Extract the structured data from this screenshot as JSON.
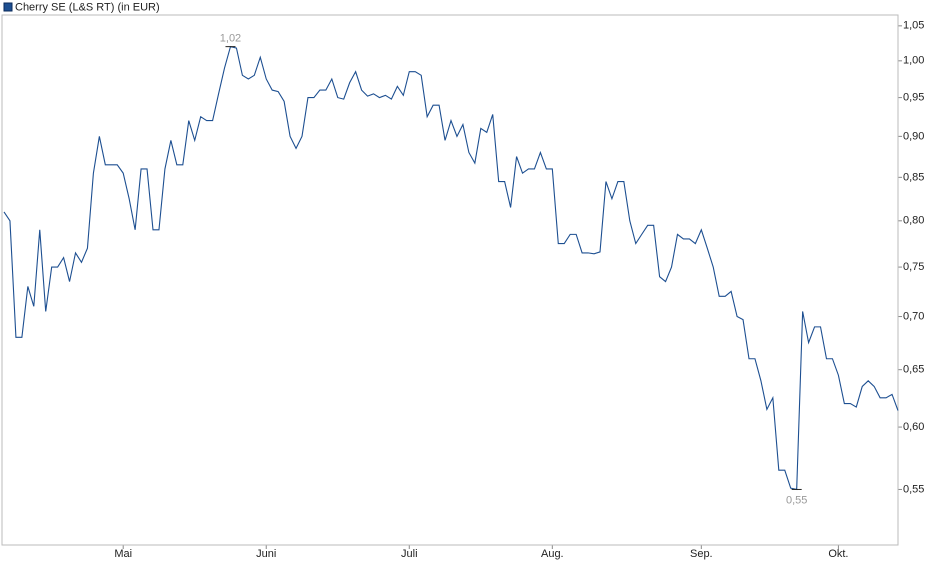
{
  "chart_data": {
    "type": "line",
    "log_scale": true,
    "grid": true,
    "legend_position": "top-left",
    "categories": [
      null,
      null,
      null,
      null,
      null,
      null,
      null,
      null,
      null,
      null,
      null,
      null,
      null,
      null,
      null,
      null,
      null,
      null,
      null,
      null,
      "Mai",
      null,
      null,
      null,
      null,
      null,
      null,
      null,
      null,
      null,
      null,
      null,
      null,
      null,
      null,
      null,
      null,
      null,
      null,
      null,
      null,
      null,
      null,
      null,
      "Juni",
      null,
      null,
      null,
      null,
      null,
      null,
      null,
      null,
      null,
      null,
      null,
      null,
      null,
      null,
      null,
      null,
      null,
      null,
      null,
      null,
      null,
      null,
      null,
      "Juli",
      null,
      null,
      null,
      null,
      null,
      null,
      null,
      null,
      null,
      null,
      null,
      null,
      null,
      null,
      null,
      null,
      null,
      null,
      null,
      null,
      null,
      null,
      null,
      "Aug.",
      null,
      null,
      null,
      null,
      null,
      null,
      null,
      null,
      null,
      null,
      null,
      null,
      null,
      null,
      null,
      null,
      null,
      null,
      null,
      null,
      null,
      null,
      null,
      null,
      "Sep.",
      null,
      null,
      null,
      null,
      null,
      null,
      null,
      null,
      null,
      null,
      null,
      null,
      null,
      null,
      null,
      null,
      null,
      null,
      null,
      null,
      null,
      null,
      "Okt.",
      null,
      null,
      null,
      null,
      null,
      null,
      null,
      null,
      null,
      null
    ],
    "series": [
      {
        "name": "Cherry SE (L&S RT) (in EUR)",
        "color": "#1d4f91",
        "values": [
          0.81,
          0.8,
          0.68,
          0.68,
          0.73,
          0.71,
          0.79,
          0.705,
          0.75,
          0.75,
          0.76,
          0.735,
          0.765,
          0.755,
          0.77,
          0.855,
          0.9,
          0.865,
          0.865,
          0.865,
          0.855,
          0.825,
          0.79,
          0.86,
          0.86,
          0.79,
          0.79,
          0.86,
          0.895,
          0.865,
          0.865,
          0.92,
          0.895,
          0.925,
          0.92,
          0.92,
          0.955,
          0.99,
          1.02,
          1.018,
          0.98,
          0.975,
          0.98,
          1.005,
          0.975,
          0.96,
          0.958,
          0.945,
          0.9,
          0.885,
          0.9,
          0.95,
          0.95,
          0.96,
          0.96,
          0.975,
          0.95,
          0.948,
          0.97,
          0.985,
          0.96,
          0.952,
          0.955,
          0.95,
          0.953,
          0.948,
          0.965,
          0.953,
          0.985,
          0.985,
          0.98,
          0.925,
          0.94,
          0.94,
          0.895,
          0.92,
          0.9,
          0.915,
          0.88,
          0.867,
          0.91,
          0.905,
          0.928,
          0.845,
          0.845,
          0.815,
          0.875,
          0.855,
          0.86,
          0.86,
          0.88,
          0.86,
          0.86,
          0.775,
          0.775,
          0.785,
          0.785,
          0.765,
          0.765,
          0.764,
          0.766,
          0.845,
          0.825,
          0.845,
          0.845,
          0.8,
          0.775,
          0.785,
          0.795,
          0.795,
          0.74,
          0.735,
          0.75,
          0.785,
          0.78,
          0.78,
          0.775,
          0.79,
          0.77,
          0.75,
          0.72,
          0.72,
          0.725,
          0.7,
          0.697,
          0.66,
          0.66,
          0.64,
          0.615,
          0.625,
          0.565,
          0.565,
          0.551,
          0.55,
          0.705,
          0.675,
          0.69,
          0.69,
          0.66,
          0.66,
          0.645,
          0.62,
          0.62,
          0.617,
          0.635,
          0.64,
          0.635,
          0.625,
          0.625,
          0.628,
          0.614
        ],
        "value_labels": [
          null,
          null,
          null,
          null,
          null,
          null,
          null,
          null,
          null,
          null,
          null,
          null,
          null,
          null,
          null,
          null,
          null,
          null,
          null,
          null,
          null,
          null,
          null,
          null,
          null,
          null,
          null,
          null,
          null,
          null,
          null,
          null,
          null,
          null,
          null,
          null,
          null,
          null,
          "1,02",
          null,
          null,
          null,
          null,
          null,
          null,
          null,
          null,
          null,
          null,
          null,
          null,
          null,
          null,
          null,
          null,
          null,
          null,
          null,
          null,
          null,
          null,
          null,
          null,
          null,
          null,
          null,
          null,
          null,
          null,
          null,
          null,
          null,
          null,
          null,
          null,
          null,
          null,
          null,
          null,
          null,
          null,
          null,
          null,
          null,
          null,
          null,
          null,
          null,
          null,
          null,
          null,
          null,
          null,
          null,
          null,
          null,
          null,
          null,
          null,
          null,
          null,
          null,
          null,
          null,
          null,
          null,
          null,
          null,
          null,
          null,
          null,
          null,
          null,
          null,
          null,
          null,
          null,
          null,
          null,
          null,
          null,
          null,
          null,
          null,
          null,
          null,
          null,
          null,
          null,
          null,
          null,
          null,
          null,
          "0,55",
          null,
          null,
          null,
          null,
          null,
          null,
          null,
          null,
          null,
          null,
          null,
          null,
          null,
          null,
          null,
          null,
          null
        ]
      }
    ],
    "ylim": [
      0.509,
      1.066
    ],
    "yticks": [
      {
        "value": 0.55,
        "label": "0,55"
      },
      {
        "value": 0.6,
        "label": "0,60"
      },
      {
        "value": 0.65,
        "label": "0,65"
      },
      {
        "value": 0.7,
        "label": "0,70"
      },
      {
        "value": 0.75,
        "label": "0,75"
      },
      {
        "value": 0.8,
        "label": "0,80"
      },
      {
        "value": 0.85,
        "label": "0,85"
      },
      {
        "value": 0.9,
        "label": "0,90"
      },
      {
        "value": 0.95,
        "label": "0,95"
      },
      {
        "value": 1.0,
        "label": "1,00"
      },
      {
        "value": 1.05,
        "label": "1,05"
      }
    ]
  }
}
